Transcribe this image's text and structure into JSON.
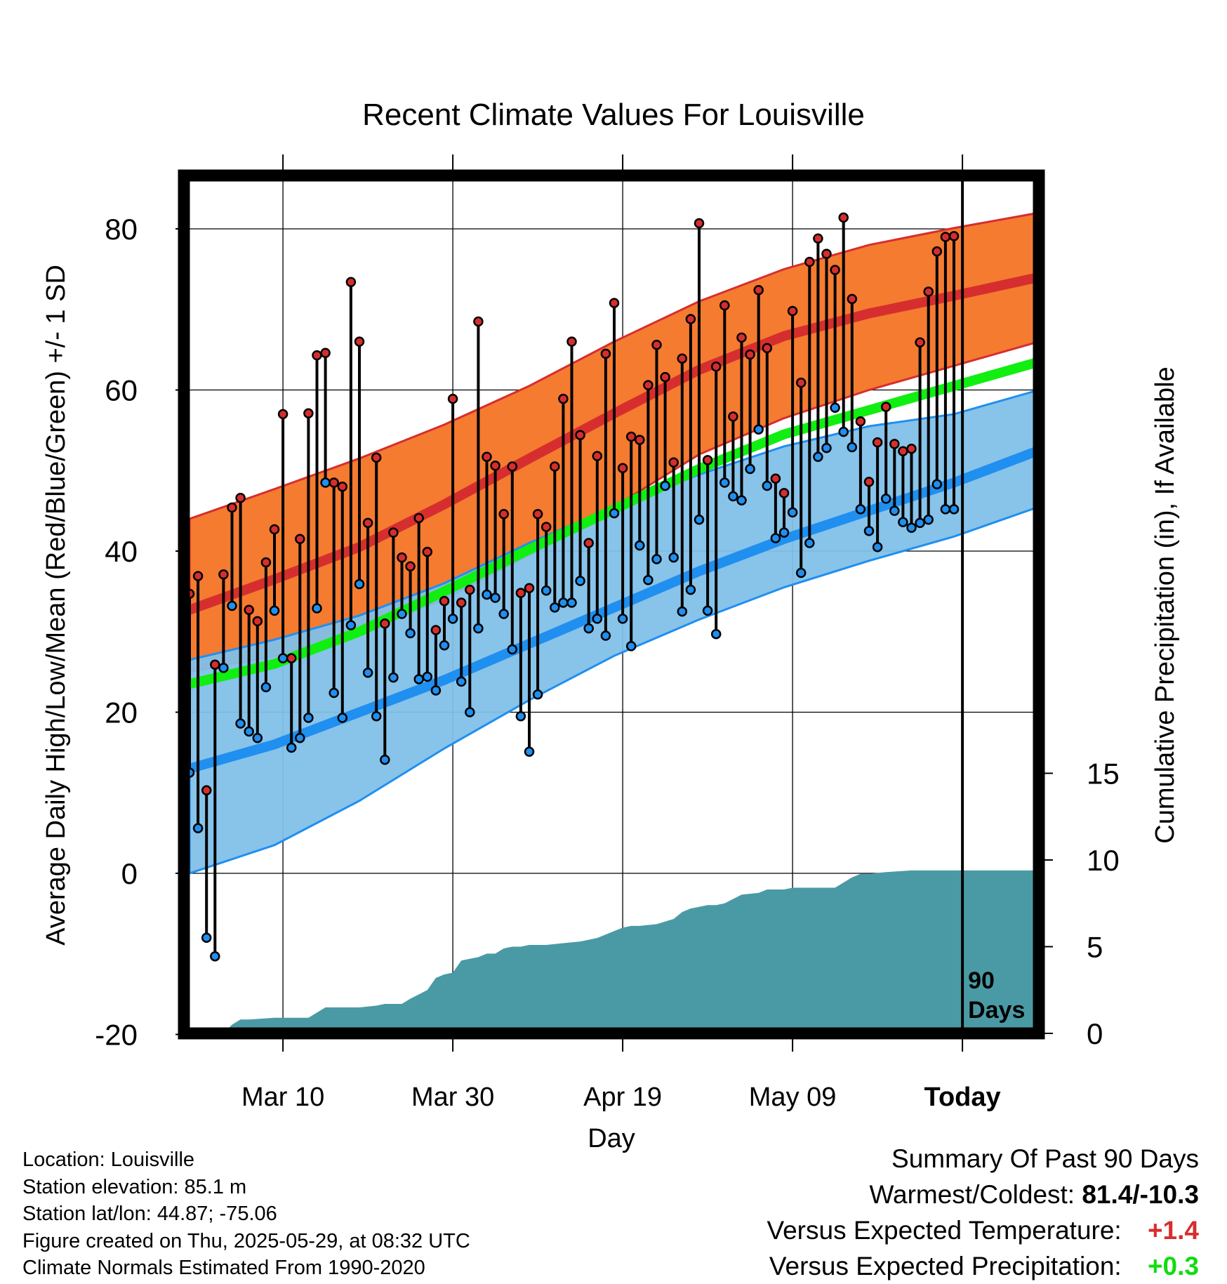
{
  "chart_data": {
    "type": "line",
    "title": "Recent Climate Values For Louisville",
    "xlabel": "Day",
    "ylabel_left": "Average Daily High/Low/Mean (Red/Blue/Green) +/- 1 SD",
    "ylabel_right": "Cumulative Precipitation (in), If Available",
    "ylim": [
      -20,
      88
    ],
    "yticks": [
      -20,
      0,
      20,
      40,
      60,
      80
    ],
    "ylim_precip": [
      0,
      19
    ],
    "yticks_precip": [
      0,
      5,
      10,
      15
    ],
    "xlim": [
      0,
      100
    ],
    "xticks": [
      {
        "day": 11,
        "label": "Mar 10"
      },
      {
        "day": 31,
        "label": "Mar 30"
      },
      {
        "day": 51,
        "label": "Apr 19"
      },
      {
        "day": 71,
        "label": "May 09"
      },
      {
        "day": 91,
        "label": "Today"
      }
    ],
    "today_day": 91,
    "today_marker_label": [
      "90",
      "Days"
    ],
    "grid": true,
    "colors": {
      "high_band": "#f47b30",
      "high_line": "#d62e2e",
      "low_band": "#82c0e8",
      "low_line": "#1f8ff0",
      "mean_line": "#11ee11",
      "precip": "#4a9aa5",
      "high_dot": "#d62e2e",
      "low_dot": "#1f8ff0"
    },
    "normals": {
      "days": [
        0,
        10,
        20,
        30,
        40,
        50,
        60,
        70,
        80,
        90,
        100
      ],
      "high_mean": [
        32.7,
        36.5,
        40.5,
        45.8,
        51.5,
        57.1,
        62.5,
        66.7,
        69.5,
        71.7,
        74
      ],
      "high_upper": [
        44,
        47.7,
        51.5,
        55.7,
        60.5,
        66,
        71,
        75,
        78,
        80.1,
        82
      ],
      "high_lower": [
        25,
        27,
        30,
        34,
        39.5,
        45.5,
        52,
        56.5,
        60,
        63,
        66
      ],
      "low_mean": [
        13,
        16,
        20,
        24,
        28.5,
        33,
        37.5,
        41.5,
        45,
        48.5,
        52.5
      ],
      "low_upper": [
        26.5,
        29,
        32,
        36,
        41,
        45.5,
        49.5,
        53,
        55.5,
        57,
        60
      ],
      "low_lower": [
        0,
        3.5,
        9,
        15.5,
        21.5,
        27,
        31.5,
        35.5,
        38.8,
        41.8,
        45.5
      ],
      "mean": [
        23.5,
        26,
        30,
        35,
        40.2,
        45.2,
        50.2,
        54.5,
        57.5,
        60.5,
        63.5
      ]
    },
    "observed": {
      "days": [
        0,
        1,
        2,
        3,
        4,
        5,
        6,
        7,
        8,
        9,
        10,
        11,
        12,
        13,
        14,
        15,
        16,
        17,
        18,
        19,
        20,
        21,
        22,
        23,
        24,
        25,
        26,
        27,
        28,
        29,
        30,
        31,
        32,
        33,
        34,
        35,
        36,
        37,
        38,
        39,
        40,
        41,
        42,
        43,
        44,
        45,
        46,
        47,
        48,
        49,
        50,
        51,
        52,
        53,
        54,
        55,
        56,
        57,
        58,
        59,
        60,
        61,
        62,
        63,
        64,
        65,
        66,
        67,
        68,
        69,
        70,
        71,
        72,
        73,
        74,
        75,
        76,
        77,
        78,
        79,
        80,
        81,
        82,
        83,
        84,
        85,
        86,
        87,
        88,
        89,
        90
      ],
      "high": [
        34.7,
        36.9,
        10.3,
        25.9,
        37.1,
        45.4,
        46.6,
        32.7,
        31.3,
        38.6,
        42.7,
        57.0,
        26.7,
        41.5,
        57.1,
        64.3,
        64.6,
        48.5,
        48.0,
        73.4,
        66.0,
        43.5,
        51.6,
        31.0,
        42.3,
        39.2,
        38.1,
        44.1,
        39.9,
        30.2,
        33.8,
        58.9,
        33.6,
        35.2,
        68.5,
        51.7,
        50.6,
        44.6,
        50.5,
        34.8,
        35.4,
        44.6,
        43.0,
        50.5,
        58.9,
        66.0,
        54.4,
        41.0,
        51.8,
        64.5,
        70.8,
        50.3,
        54.2,
        53.8,
        60.6,
        65.6,
        61.6,
        51.0,
        63.9,
        68.8,
        80.7,
        51.3,
        62.9,
        70.5,
        56.7,
        66.5,
        64.4,
        72.4,
        65.2,
        49.0,
        47.2,
        69.8,
        60.9,
        75.9,
        78.8,
        76.9,
        74.9,
        81.4,
        71.3,
        56.1,
        48.6,
        53.5,
        57.9,
        53.3,
        52.4,
        52.7,
        65.9,
        72.2,
        77.2,
        79.0,
        79.1
      ],
      "low": [
        12.5,
        5.6,
        -8.0,
        -10.3,
        25.5,
        33.2,
        18.6,
        17.6,
        16.8,
        23.1,
        32.6,
        26.7,
        15.6,
        16.8,
        19.3,
        32.9,
        48.5,
        22.4,
        19.3,
        30.8,
        35.9,
        24.9,
        19.5,
        14.1,
        24.3,
        32.2,
        29.8,
        24.1,
        24.4,
        22.7,
        28.3,
        31.6,
        23.8,
        20.0,
        30.4,
        34.6,
        34.2,
        32.2,
        27.8,
        19.5,
        15.1,
        22.2,
        35.1,
        33.0,
        33.6,
        33.6,
        36.3,
        30.4,
        31.6,
        29.5,
        44.7,
        31.6,
        28.2,
        40.7,
        36.4,
        39.0,
        48.1,
        39.2,
        32.5,
        35.2,
        43.9,
        32.6,
        29.7,
        48.5,
        46.8,
        46.3,
        50.2,
        55.1,
        48.1,
        41.6,
        42.3,
        44.8,
        37.3,
        41.0,
        51.7,
        52.8,
        57.8,
        54.8,
        52.9,
        45.2,
        42.5,
        40.5,
        46.5,
        45.0,
        43.6,
        42.9,
        43.5,
        43.9,
        48.3,
        45.2,
        45.2
      ]
    },
    "precip": {
      "days": [
        0,
        4,
        5,
        6,
        7,
        10,
        11,
        14,
        15,
        16,
        17,
        20,
        22,
        23,
        25,
        26,
        28,
        29,
        30,
        31,
        32,
        33,
        34,
        35,
        36,
        37,
        38,
        39,
        40,
        42,
        44,
        46,
        48,
        50,
        51,
        52,
        53,
        55,
        57,
        58,
        59,
        60,
        61,
        62,
        63,
        65,
        67,
        68,
        70,
        71,
        72,
        75,
        76,
        78,
        79,
        80,
        82,
        85,
        86,
        89,
        91,
        100
      ],
      "totals": [
        0,
        0,
        0.5,
        0.8,
        0.8,
        0.9,
        0.9,
        0.9,
        1.2,
        1.5,
        1.5,
        1.5,
        1.6,
        1.7,
        1.7,
        2.0,
        2.5,
        3.2,
        3.4,
        3.5,
        4.2,
        4.3,
        4.4,
        4.6,
        4.6,
        4.9,
        5.0,
        5.0,
        5.1,
        5.1,
        5.2,
        5.3,
        5.5,
        5.9,
        6.1,
        6.2,
        6.2,
        6.3,
        6.6,
        7.0,
        7.2,
        7.3,
        7.4,
        7.4,
        7.5,
        8.0,
        8.1,
        8.3,
        8.3,
        8.4,
        8.4,
        8.4,
        8.4,
        9.0,
        9.2,
        9.2,
        9.3,
        9.4,
        9.4,
        9.4,
        9.4,
        9.4
      ]
    }
  },
  "info": {
    "location": "Location: Louisville",
    "elevation": "Station elevation: 85.1 m",
    "latlon": "Station lat/lon: 44.87; -75.06",
    "created": "Figure created on Thu, 2025-05-29, at 08:32 UTC",
    "normals": "Climate Normals Estimated From 1990-2020"
  },
  "summary": {
    "title": "Summary Of Past 90 Days",
    "warm_cold_label": "Warmest/Coldest:",
    "warm_cold_value": "81.4/-10.3",
    "temp_label": "Versus Expected Temperature:",
    "temp_value": "+1.4",
    "temp_color": "#d62e2e",
    "precip_label": "Versus Expected Precipitation:",
    "precip_value": "+0.3",
    "precip_color": "#11dd11"
  }
}
